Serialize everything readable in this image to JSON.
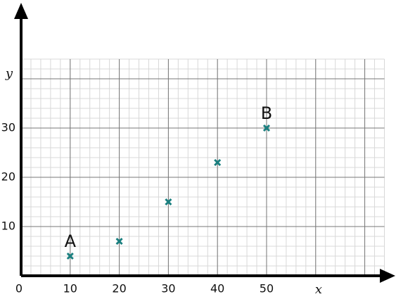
{
  "chart_data": {
    "type": "scatter",
    "x": [
      10,
      20,
      30,
      40,
      50
    ],
    "values": [
      4,
      7,
      15,
      23,
      30
    ],
    "color": "#1a7f7f",
    "xlim": [
      0,
      74
    ],
    "ylim": [
      0,
      44
    ],
    "xticks": [
      0,
      10,
      20,
      30,
      40,
      50
    ],
    "yticks": [
      10,
      20,
      30
    ],
    "xlabel": "x",
    "ylabel": "y",
    "grid": true,
    "annotations": [
      {
        "text": "A",
        "x": 10,
        "y": 4
      },
      {
        "text": "B",
        "x": 50,
        "y": 30
      }
    ]
  }
}
